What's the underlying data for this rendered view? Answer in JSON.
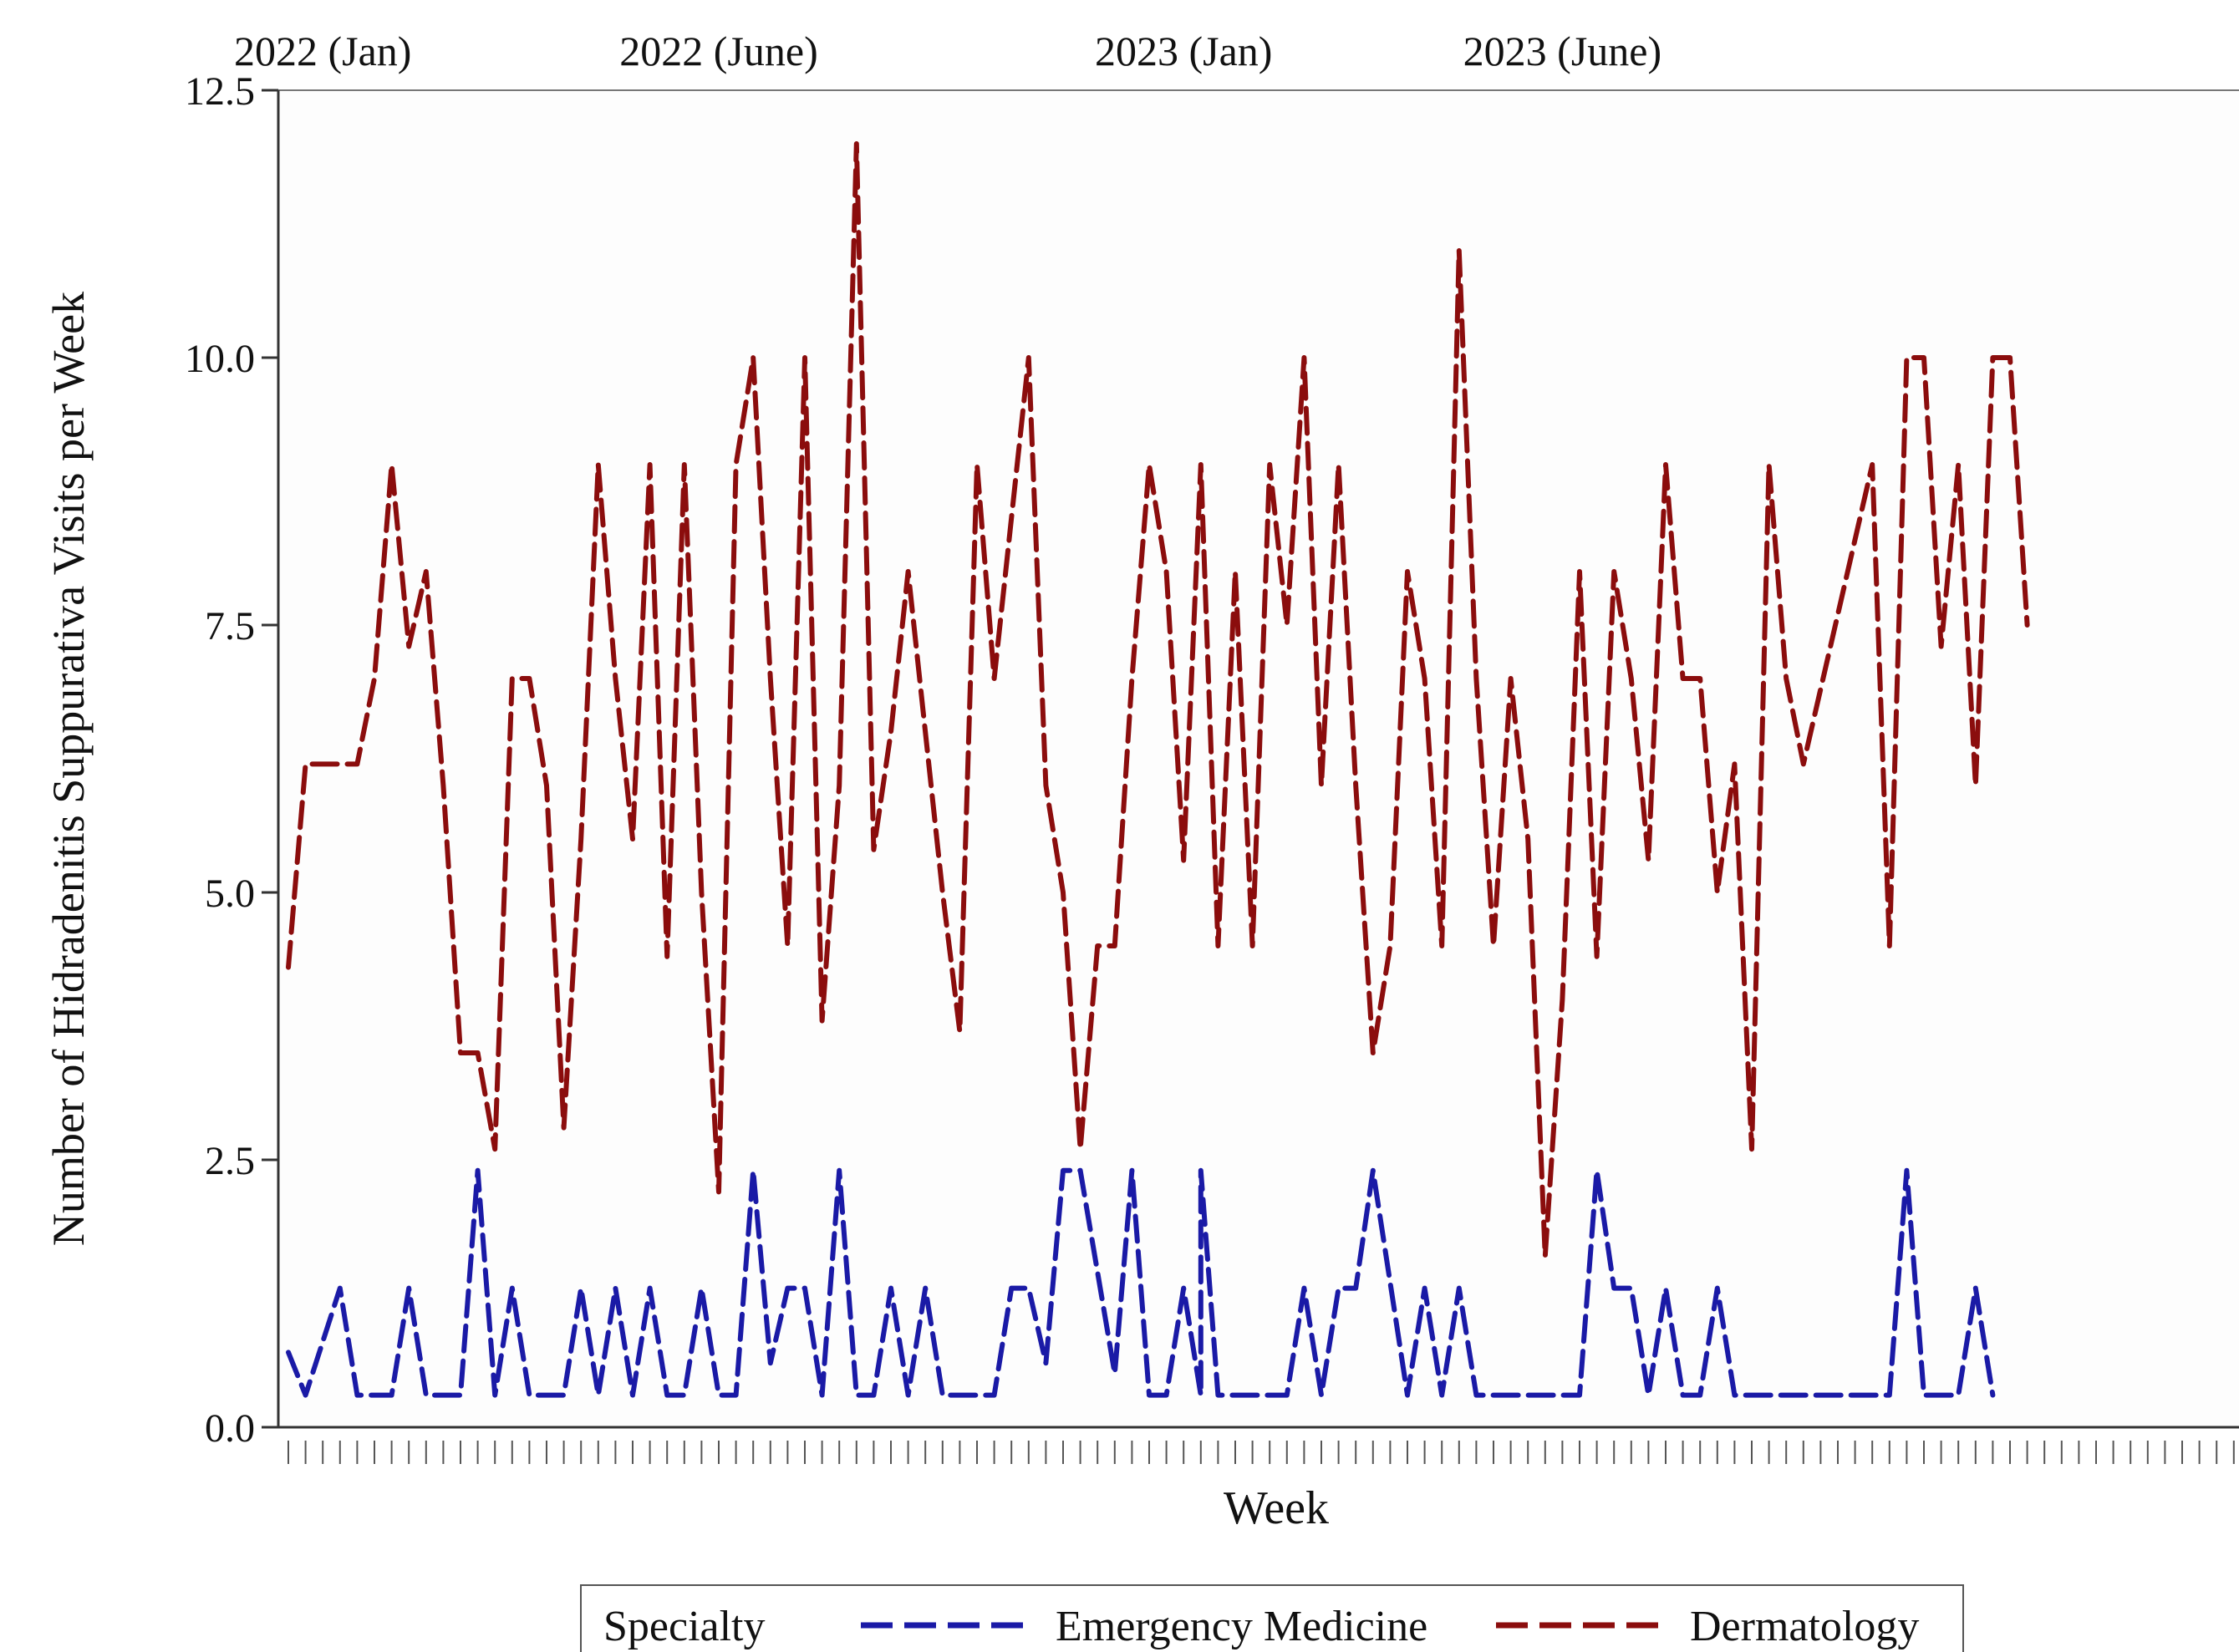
{
  "chart_data": {
    "type": "line",
    "xlabel": "Week",
    "ylabel": "Number of Hidradenitis Suppurativa  Visits per Week",
    "ylim": [
      0,
      12.5
    ],
    "yticks": [
      "0.0",
      "2.5",
      "5.0",
      "7.5",
      "10.0",
      "12.5"
    ],
    "period_labels": [
      "2022 (Jan)",
      "2022 (June)",
      "2023 (Jan)",
      "2023 (June)"
    ],
    "period_label_weeks": [
      3,
      26,
      53,
      75
    ],
    "reference_weeks": [
      1,
      13,
      26,
      39,
      53,
      65,
      78,
      91
    ],
    "week_count": 118,
    "legend": {
      "title": "Specialty",
      "entries": [
        "Emergency Medicine",
        "Dermatology"
      ]
    },
    "colors": {
      "Emergency Medicine": "#1a1aa6",
      "Dermatology": "#8b0d0d"
    },
    "series": [
      {
        "name": "Emergency Medicine",
        "points": [
          [
            1,
            0.7
          ],
          [
            2,
            0.3
          ],
          [
            4,
            1.3
          ],
          [
            5,
            0.3
          ],
          [
            7,
            0.3
          ],
          [
            8,
            1.3
          ],
          [
            9,
            0.3
          ],
          [
            11,
            0.3
          ],
          [
            12,
            2.4
          ],
          [
            13,
            0.3
          ],
          [
            14,
            1.3
          ],
          [
            15,
            0.3
          ],
          [
            17,
            0.3
          ],
          [
            18,
            1.3
          ],
          [
            19,
            0.3
          ],
          [
            20,
            1.3
          ],
          [
            21,
            0.3
          ],
          [
            22,
            1.3
          ],
          [
            23,
            0.3
          ],
          [
            24,
            0.3
          ],
          [
            25,
            1.3
          ],
          [
            26,
            0.3
          ],
          [
            27,
            0.3
          ],
          [
            28,
            2.4
          ],
          [
            29,
            0.6
          ],
          [
            30,
            1.3
          ],
          [
            31,
            1.3
          ],
          [
            32,
            0.3
          ],
          [
            33,
            2.4
          ],
          [
            34,
            0.3
          ],
          [
            35,
            0.3
          ],
          [
            36,
            1.3
          ],
          [
            37,
            0.3
          ],
          [
            38,
            1.3
          ],
          [
            39,
            0.3
          ],
          [
            42,
            0.3
          ],
          [
            43,
            1.3
          ],
          [
            44,
            1.3
          ],
          [
            45,
            0.6
          ],
          [
            46,
            2.4
          ],
          [
            47,
            2.4
          ],
          [
            49,
            0.5
          ],
          [
            50,
            2.4
          ],
          [
            51,
            0.3
          ],
          [
            52,
            0.3
          ],
          [
            53,
            1.3
          ],
          [
            54,
            0.3
          ],
          [
            54,
            2.4
          ],
          [
            55,
            0.3
          ],
          [
            59,
            0.3
          ],
          [
            60,
            1.3
          ],
          [
            61,
            0.3
          ],
          [
            62,
            1.3
          ],
          [
            63,
            1.3
          ],
          [
            64,
            2.4
          ],
          [
            66,
            0.3
          ],
          [
            67,
            1.3
          ],
          [
            68,
            0.3
          ],
          [
            69,
            1.3
          ],
          [
            70,
            0.3
          ],
          [
            75,
            0.3
          ],
          [
            76,
            0.3
          ],
          [
            77,
            2.4
          ],
          [
            78,
            1.3
          ],
          [
            79,
            1.3
          ],
          [
            80,
            0.3
          ],
          [
            81,
            1.3
          ],
          [
            82,
            0.3
          ],
          [
            83,
            0.3
          ],
          [
            84,
            1.3
          ],
          [
            85,
            0.3
          ],
          [
            94,
            0.3
          ],
          [
            95,
            2.4
          ],
          [
            96,
            0.3
          ],
          [
            98,
            0.3
          ],
          [
            99,
            1.3
          ],
          [
            100,
            0.3
          ]
        ]
      },
      {
        "name": "Dermatology",
        "points": [
          [
            1,
            4.3
          ],
          [
            2,
            6.2
          ],
          [
            4,
            6.2
          ],
          [
            5,
            6.2
          ],
          [
            6,
            7.0
          ],
          [
            7,
            9.0
          ],
          [
            8,
            7.3
          ],
          [
            9,
            8.0
          ],
          [
            10,
            6.0
          ],
          [
            11,
            3.5
          ],
          [
            12,
            3.5
          ],
          [
            13,
            2.6
          ],
          [
            14,
            7.0
          ],
          [
            15,
            7.0
          ],
          [
            16,
            6.0
          ],
          [
            17,
            2.8
          ],
          [
            18,
            5.5
          ],
          [
            19,
            9.0
          ],
          [
            20,
            7.0
          ],
          [
            21,
            5.5
          ],
          [
            22,
            9.0
          ],
          [
            23,
            4.4
          ],
          [
            24,
            9.0
          ],
          [
            25,
            5.0
          ],
          [
            26,
            2.2
          ],
          [
            27,
            9.0
          ],
          [
            28,
            10.0
          ],
          [
            29,
            7.0
          ],
          [
            30,
            4.5
          ],
          [
            31,
            10.0
          ],
          [
            32,
            3.8
          ],
          [
            33,
            6.0
          ],
          [
            34,
            12.0
          ],
          [
            35,
            5.4
          ],
          [
            36,
            6.5
          ],
          [
            37,
            8.0
          ],
          [
            39,
            5.0
          ],
          [
            40,
            3.7
          ],
          [
            41,
            9.0
          ],
          [
            42,
            7.0
          ],
          [
            44,
            10.0
          ],
          [
            45,
            6.0
          ],
          [
            46,
            5.0
          ],
          [
            47,
            2.6
          ],
          [
            48,
            4.5
          ],
          [
            49,
            4.5
          ],
          [
            50,
            7.0
          ],
          [
            51,
            9.0
          ],
          [
            52,
            8.0
          ],
          [
            53,
            5.3
          ],
          [
            54,
            9.0
          ],
          [
            55,
            4.5
          ],
          [
            56,
            8.0
          ],
          [
            57,
            4.5
          ],
          [
            58,
            9.0
          ],
          [
            59,
            7.5
          ],
          [
            60,
            10.0
          ],
          [
            61,
            6.0
          ],
          [
            62,
            9.0
          ],
          [
            63,
            6.0
          ],
          [
            64,
            3.5
          ],
          [
            65,
            4.5
          ],
          [
            66,
            8.0
          ],
          [
            67,
            7.0
          ],
          [
            68,
            4.5
          ],
          [
            69,
            11.0
          ],
          [
            70,
            7.0
          ],
          [
            71,
            4.5
          ],
          [
            72,
            7.0
          ],
          [
            73,
            5.5
          ],
          [
            74,
            1.6
          ],
          [
            75,
            4.0
          ],
          [
            76,
            8.0
          ],
          [
            77,
            4.4
          ],
          [
            78,
            8.0
          ],
          [
            79,
            7.0
          ],
          [
            80,
            5.3
          ],
          [
            81,
            9.0
          ],
          [
            82,
            7.0
          ],
          [
            83,
            7.0
          ],
          [
            84,
            5.0
          ],
          [
            85,
            6.2
          ],
          [
            86,
            2.6
          ],
          [
            87,
            9.0
          ],
          [
            88,
            7.0
          ],
          [
            89,
            6.2
          ],
          [
            93,
            9.0
          ],
          [
            94,
            4.5
          ],
          [
            95,
            10.0
          ],
          [
            96,
            10.0
          ],
          [
            97,
            7.3
          ],
          [
            98,
            9.0
          ],
          [
            99,
            6.0
          ],
          [
            100,
            10.0
          ],
          [
            101,
            10.0
          ],
          [
            102,
            7.5
          ]
        ]
      }
    ]
  }
}
